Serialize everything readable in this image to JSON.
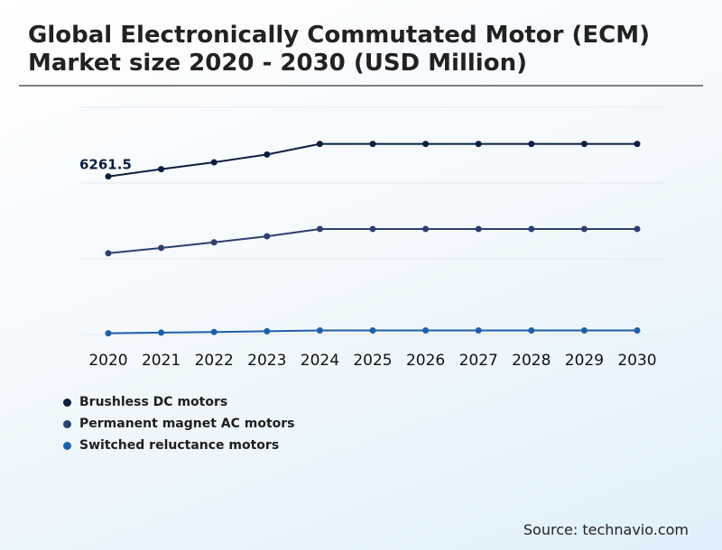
{
  "title": "Global Electronically Commutated Motor (ECM) Market size 2020 - 2030 (USD Million)",
  "source": "Source: technavio.com",
  "chart_data": {
    "type": "line",
    "x": [
      "2020",
      "2021",
      "2022",
      "2023",
      "2024",
      "2025",
      "2026",
      "2027",
      "2028",
      "2029",
      "2030"
    ],
    "ylim": [
      0,
      9000
    ],
    "grid": true,
    "legend_position": "bottom-left",
    "series": [
      {
        "name": "Brushless DC motors",
        "color": "#0b1f3f",
        "values": [
          6261.5,
          6550,
          6820,
          7130,
          7550,
          7550,
          7550,
          7550,
          7550,
          7550,
          7550
        ],
        "value_label": "6261.5"
      },
      {
        "name": "Permanent magnet AC motors",
        "color": "#2e3e6e",
        "values": [
          3220,
          3430,
          3650,
          3890,
          4180,
          4180,
          4180,
          4180,
          4180,
          4180,
          4180
        ]
      },
      {
        "name": "Switched reluctance motors",
        "color": "#1f5fa8",
        "values": [
          50,
          75,
          100,
          130,
          160,
          160,
          160,
          160,
          160,
          160,
          160
        ]
      }
    ]
  }
}
